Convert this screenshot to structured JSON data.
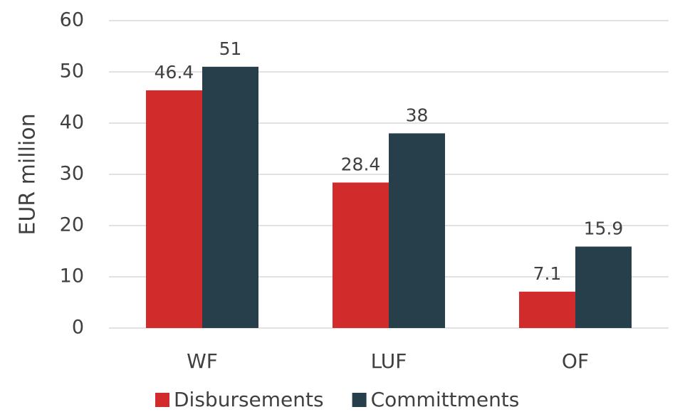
{
  "chart_data": {
    "type": "bar",
    "y_label": "EUR million",
    "categories": [
      "WF",
      "LUF",
      "OF"
    ],
    "series": [
      {
        "name": "Disbursements",
        "color": "#d22b2b",
        "values": [
          46.4,
          28.4,
          7.1
        ]
      },
      {
        "name": "Committments",
        "color": "#263f4a",
        "values": [
          51,
          38,
          15.9
        ]
      }
    ],
    "ylim": [
      0,
      60
    ],
    "yticks": [
      0,
      10,
      20,
      30,
      40,
      50,
      60
    ],
    "grid": true
  }
}
